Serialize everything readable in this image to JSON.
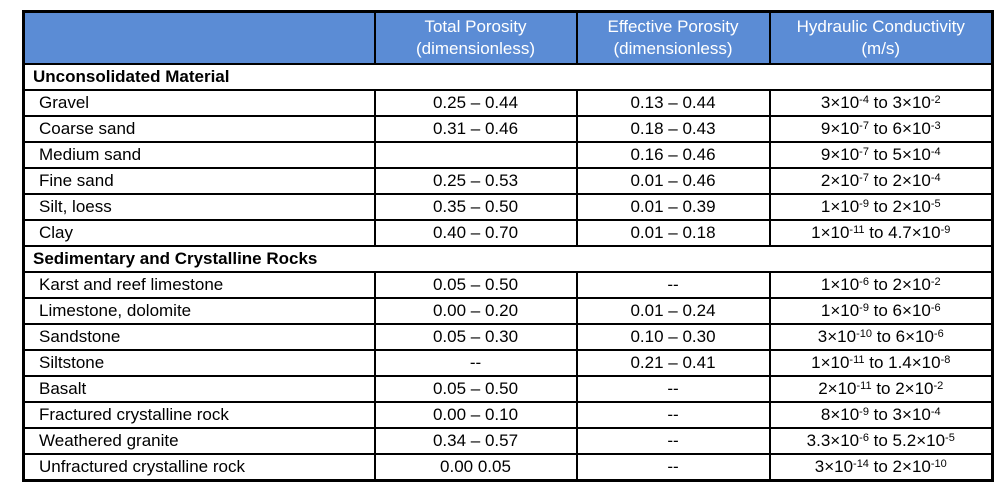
{
  "colors": {
    "header_bg": "#5B8CD5",
    "header_text": "#FFFFFF",
    "border": "#000000",
    "body_text": "#000000",
    "row_bg": "#FFFFFF"
  },
  "chart_data": {
    "type": "table",
    "columns": [
      {
        "line1": "",
        "line2": ""
      },
      {
        "line1": "Total Porosity",
        "line2": "(dimensionless)"
      },
      {
        "line1": "Effective Porosity",
        "line2": "(dimensionless)"
      },
      {
        "line1": "Hydraulic Conductivity",
        "line2": "(m/s)"
      }
    ],
    "sections": [
      {
        "title": "Unconsolidated Material",
        "rows": [
          {
            "material": "Gravel",
            "total_porosity": "0.25 – 0.44",
            "effective_porosity": "0.13 – 0.44",
            "hydraulic_conductivity": {
              "text": "3×10^-4 to 3×10^-2",
              "parts": [
                {
                  "t": "3×10"
                },
                {
                  "sup": "-4"
                },
                {
                  "t": " to 3×10"
                },
                {
                  "sup": "-2"
                }
              ]
            }
          },
          {
            "material": "Coarse sand",
            "total_porosity": "0.31 – 0.46",
            "effective_porosity": "0.18 – 0.43",
            "hydraulic_conductivity": {
              "text": "9×10^-7 to 6×10^-3",
              "parts": [
                {
                  "t": "9×10"
                },
                {
                  "sup": "-7"
                },
                {
                  "t": " to 6×10"
                },
                {
                  "sup": "-3"
                }
              ]
            }
          },
          {
            "material": "Medium sand",
            "total_porosity": "",
            "effective_porosity": "0.16 – 0.46",
            "hydraulic_conductivity": {
              "text": "9×10^-7 to 5×10^-4",
              "parts": [
                {
                  "t": "9×10"
                },
                {
                  "sup": "-7"
                },
                {
                  "t": " to 5×10"
                },
                {
                  "sup": "-4"
                }
              ]
            }
          },
          {
            "material": "Fine sand",
            "total_porosity": "0.25 – 0.53",
            "effective_porosity": "0.01 – 0.46",
            "hydraulic_conductivity": {
              "text": "2×10^-7 to 2×10^-4",
              "parts": [
                {
                  "t": "2×10"
                },
                {
                  "sup": "-7"
                },
                {
                  "t": " to 2×10"
                },
                {
                  "sup": "-4"
                }
              ]
            }
          },
          {
            "material": "Silt, loess",
            "total_porosity": "0.35 – 0.50",
            "effective_porosity": "0.01 – 0.39",
            "hydraulic_conductivity": {
              "text": "1×10^-9 to 2×10^-5",
              "parts": [
                {
                  "t": "1×10"
                },
                {
                  "sup": "-9"
                },
                {
                  "t": " to 2×10"
                },
                {
                  "sup": "-5"
                }
              ]
            }
          },
          {
            "material": "Clay",
            "total_porosity": "0.40 – 0.70",
            "effective_porosity": "0.01 – 0.18",
            "hydraulic_conductivity": {
              "text": "1×10^-11 to 4.7×10^-9",
              "parts": [
                {
                  "t": "1×10"
                },
                {
                  "sup": "-11"
                },
                {
                  "t": " to 4.7×10"
                },
                {
                  "sup": "-9"
                }
              ]
            }
          }
        ]
      },
      {
        "title": "Sedimentary and Crystalline Rocks",
        "rows": [
          {
            "material": "Karst and reef limestone",
            "total_porosity": "0.05 – 0.50",
            "effective_porosity": "--",
            "hydraulic_conductivity": {
              "text": "1×10^-6 to 2×10^-2",
              "parts": [
                {
                  "t": "1×10"
                },
                {
                  "sup": "-6"
                },
                {
                  "t": " to 2×10"
                },
                {
                  "sup": "-2"
                }
              ]
            }
          },
          {
            "material": "Limestone, dolomite",
            "total_porosity": "0.00 – 0.20",
            "effective_porosity": "0.01 – 0.24",
            "hydraulic_conductivity": {
              "text": "1×10^-9 to 6×10^-6",
              "parts": [
                {
                  "t": "1×10"
                },
                {
                  "sup": "-9"
                },
                {
                  "t": " to 6×10"
                },
                {
                  "sup": "-6"
                }
              ]
            }
          },
          {
            "material": "Sandstone",
            "total_porosity": "0.05 – 0.30",
            "effective_porosity": "0.10 – 0.30",
            "hydraulic_conductivity": {
              "text": "3×10^-10 to 6×10^-6",
              "parts": [
                {
                  "t": "3×10"
                },
                {
                  "sup": "-10"
                },
                {
                  "t": " to 6×10"
                },
                {
                  "sup": "-6"
                }
              ]
            }
          },
          {
            "material": "Siltstone",
            "total_porosity": "--",
            "effective_porosity": "0.21 – 0.41",
            "hydraulic_conductivity": {
              "text": "1×10^-11 to 1.4×10^-8",
              "parts": [
                {
                  "t": "1×10"
                },
                {
                  "sup": "-11"
                },
                {
                  "t": " to 1.4×10"
                },
                {
                  "sup": "-8"
                }
              ]
            }
          },
          {
            "material": "Basalt",
            "total_porosity": "0.05 – 0.50",
            "effective_porosity": "--",
            "hydraulic_conductivity": {
              "text": "2×10^-11 to 2×10^-2",
              "parts": [
                {
                  "t": "2×10"
                },
                {
                  "sup": "-11"
                },
                {
                  "t": " to 2×10"
                },
                {
                  "sup": "-2"
                }
              ]
            }
          },
          {
            "material": "Fractured crystalline rock",
            "total_porosity": "0.00 – 0.10",
            "effective_porosity": "--",
            "hydraulic_conductivity": {
              "text": "8×10^-9 to 3×10^-4",
              "parts": [
                {
                  "t": "8×10"
                },
                {
                  "sup": "-9"
                },
                {
                  "t": " to 3×10"
                },
                {
                  "sup": "-4"
                }
              ]
            }
          },
          {
            "material": "Weathered granite",
            "total_porosity": "0.34 – 0.57",
            "effective_porosity": "--",
            "hydraulic_conductivity": {
              "text": "3.3×10^-6 to 5.2×10^-5",
              "parts": [
                {
                  "t": "3.3×10"
                },
                {
                  "sup": "-6"
                },
                {
                  "t": " to 5.2×10"
                },
                {
                  "sup": "-5"
                }
              ]
            }
          },
          {
            "material": "Unfractured crystalline rock",
            "total_porosity": "0.00 0.05",
            "effective_porosity": "--",
            "hydraulic_conductivity": {
              "text": "3×10^-14 to 2×10^-10",
              "parts": [
                {
                  "t": "3×10"
                },
                {
                  "sup": "-14"
                },
                {
                  "t": " to 2×10"
                },
                {
                  "sup": "-10"
                }
              ]
            }
          }
        ]
      }
    ]
  }
}
